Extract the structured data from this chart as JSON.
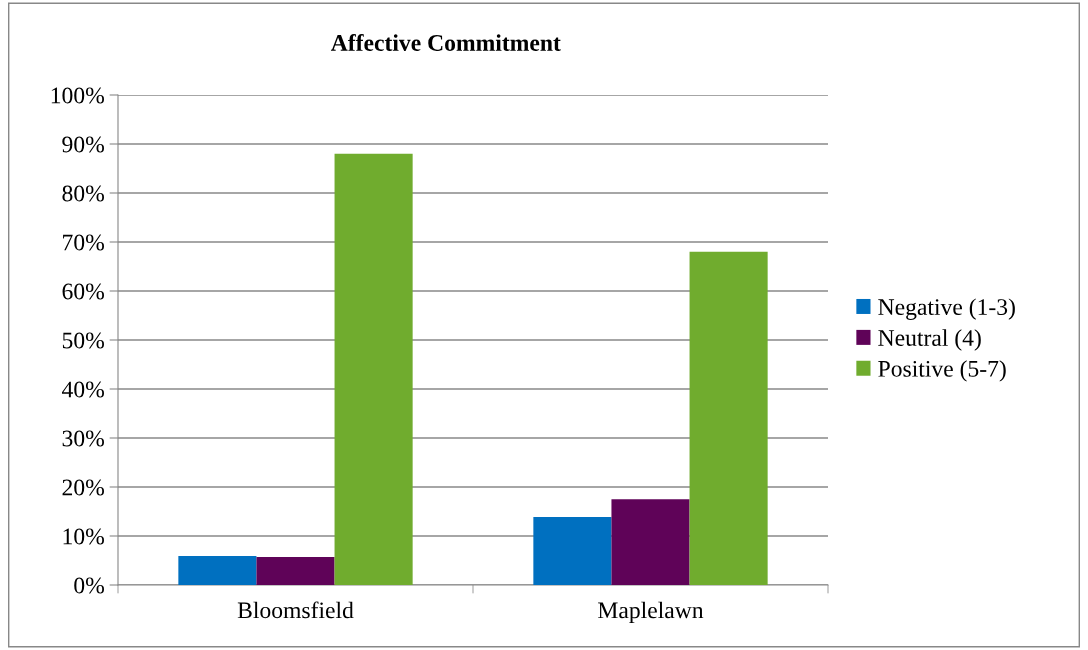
{
  "chart_data": {
    "type": "bar",
    "title": "Affective Commitment",
    "categories": [
      "Bloomsfield",
      "Maplelawn"
    ],
    "series": [
      {
        "name": "Negative (1-3)",
        "color": "#0070c0",
        "values": [
          5.9,
          13.9
        ]
      },
      {
        "name": "Neutral (4)",
        "color": "#5f0358",
        "values": [
          5.7,
          17.5
        ]
      },
      {
        "name": "Positive (5-7)",
        "color": "#70ac2e",
        "values": [
          88,
          68
        ]
      }
    ],
    "ylim": [
      0,
      100
    ],
    "yticks": [
      {
        "value": 0,
        "label": "0%"
      },
      {
        "value": 10,
        "label": "10%"
      },
      {
        "value": 20,
        "label": "20%"
      },
      {
        "value": 30,
        "label": "30%"
      },
      {
        "value": 40,
        "label": "40%"
      },
      {
        "value": 50,
        "label": "50%"
      },
      {
        "value": 60,
        "label": "60%"
      },
      {
        "value": 70,
        "label": "70%"
      },
      {
        "value": 80,
        "label": "80%"
      },
      {
        "value": 90,
        "label": "90%"
      },
      {
        "value": 100,
        "label": "100%"
      }
    ],
    "grid": "y",
    "legend": "right"
  }
}
